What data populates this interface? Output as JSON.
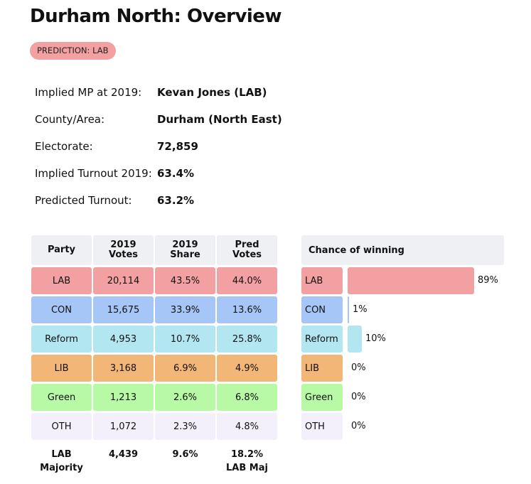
{
  "title": "Durham North: Overview",
  "prediction_badge": "PREDICTION: LAB",
  "info": [
    {
      "label": "Implied MP at 2019:",
      "value": "Kevan Jones  (LAB)"
    },
    {
      "label": "County/Area:",
      "value": "Durham (North East)"
    },
    {
      "label": "Electorate:",
      "value": "72,859"
    },
    {
      "label": "Implied Turnout 2019:",
      "value": "63.4%"
    },
    {
      "label": "Predicted Turnout:",
      "value": "63.2%"
    }
  ],
  "table": {
    "headers": [
      "Party",
      "2019\nVotes",
      "2019\nShare",
      "Pred\nVotes"
    ],
    "rows": [
      {
        "party": "LAB",
        "votes": "20,114",
        "share": "43.5%",
        "pred": "44.0%",
        "color": "#f2a0a2"
      },
      {
        "party": "CON",
        "votes": "15,675",
        "share": "33.9%",
        "pred": "13.6%",
        "color": "#a6c6f7"
      },
      {
        "party": "Reform",
        "votes": "4,953",
        "share": "10.7%",
        "pred": "25.8%",
        "color": "#b2e6f1"
      },
      {
        "party": "LIB",
        "votes": "3,168",
        "share": "6.9%",
        "pred": "4.9%",
        "color": "#f2b677"
      },
      {
        "party": "Green",
        "votes": "1,213",
        "share": "2.6%",
        "pred": "6.8%",
        "color": "#b8f9a6"
      },
      {
        "party": "OTH",
        "votes": "1,072",
        "share": "2.3%",
        "pred": "4.8%",
        "color": "#f3f0fb"
      }
    ],
    "footer": [
      "LAB\nMajority",
      "4,439",
      "9.6%",
      "18.2%\nLAB Maj"
    ]
  },
  "chance": {
    "header": "Chance of winning",
    "rows": [
      {
        "party": "LAB",
        "pct": "89%",
        "value": 89,
        "color": "#f2a0a2"
      },
      {
        "party": "CON",
        "pct": "1%",
        "value": 1,
        "color": "#a6c6f7"
      },
      {
        "party": "Reform",
        "pct": "10%",
        "value": 10,
        "color": "#b2e6f1"
      },
      {
        "party": "LIB",
        "pct": "0%",
        "value": 0,
        "color": "#f2b677"
      },
      {
        "party": "Green",
        "pct": "0%",
        "value": 0,
        "color": "#b8f9a6"
      },
      {
        "party": "OTH",
        "pct": "0%",
        "value": 0,
        "color": "#f3f0fb"
      }
    ]
  }
}
